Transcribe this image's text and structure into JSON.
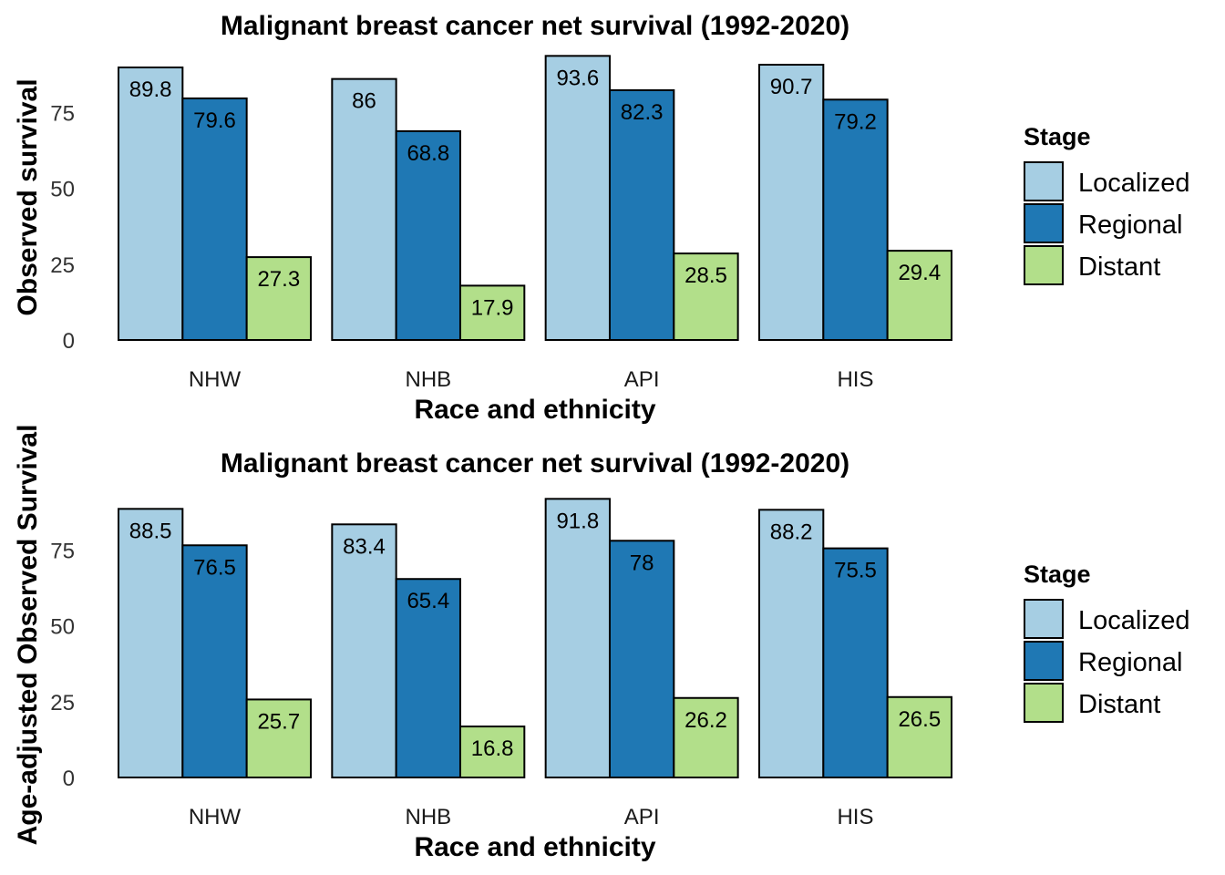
{
  "colors": {
    "Localized": "#a6cee3",
    "Regional": "#1f78b4",
    "Distant": "#b2df8a"
  },
  "chart_data": [
    {
      "type": "bar",
      "title": "Malignant breast cancer net survival (1992-2020)",
      "xlabel": "Race and ethnicity",
      "ylabel": "Observed survival",
      "categories": [
        "NHW",
        "NHB",
        "API",
        "HIS"
      ],
      "yticks": [
        0,
        25,
        50,
        75
      ],
      "ylim": [
        0,
        94
      ],
      "legend": {
        "title": "Stage",
        "position": "right"
      },
      "series": [
        {
          "name": "Localized",
          "values": [
            89.8,
            86,
            93.6,
            90.7
          ]
        },
        {
          "name": "Regional",
          "values": [
            79.6,
            68.8,
            82.3,
            79.2
          ]
        },
        {
          "name": "Distant",
          "values": [
            27.3,
            17.9,
            28.5,
            29.4
          ]
        }
      ]
    },
    {
      "type": "bar",
      "title": "Malignant breast cancer net survival (1992-2020)",
      "xlabel": "Race and ethnicity",
      "ylabel": "Age-adjusted Observed Survival",
      "categories": [
        "NHW",
        "NHB",
        "API",
        "HIS"
      ],
      "yticks": [
        0,
        25,
        50,
        75
      ],
      "ylim": [
        0,
        94
      ],
      "legend": {
        "title": "Stage",
        "position": "right"
      },
      "series": [
        {
          "name": "Localized",
          "values": [
            88.5,
            83.4,
            91.8,
            88.2
          ]
        },
        {
          "name": "Regional",
          "values": [
            76.5,
            65.4,
            78,
            75.5
          ]
        },
        {
          "name": "Distant",
          "values": [
            25.7,
            16.8,
            26.2,
            26.5
          ]
        }
      ]
    }
  ]
}
